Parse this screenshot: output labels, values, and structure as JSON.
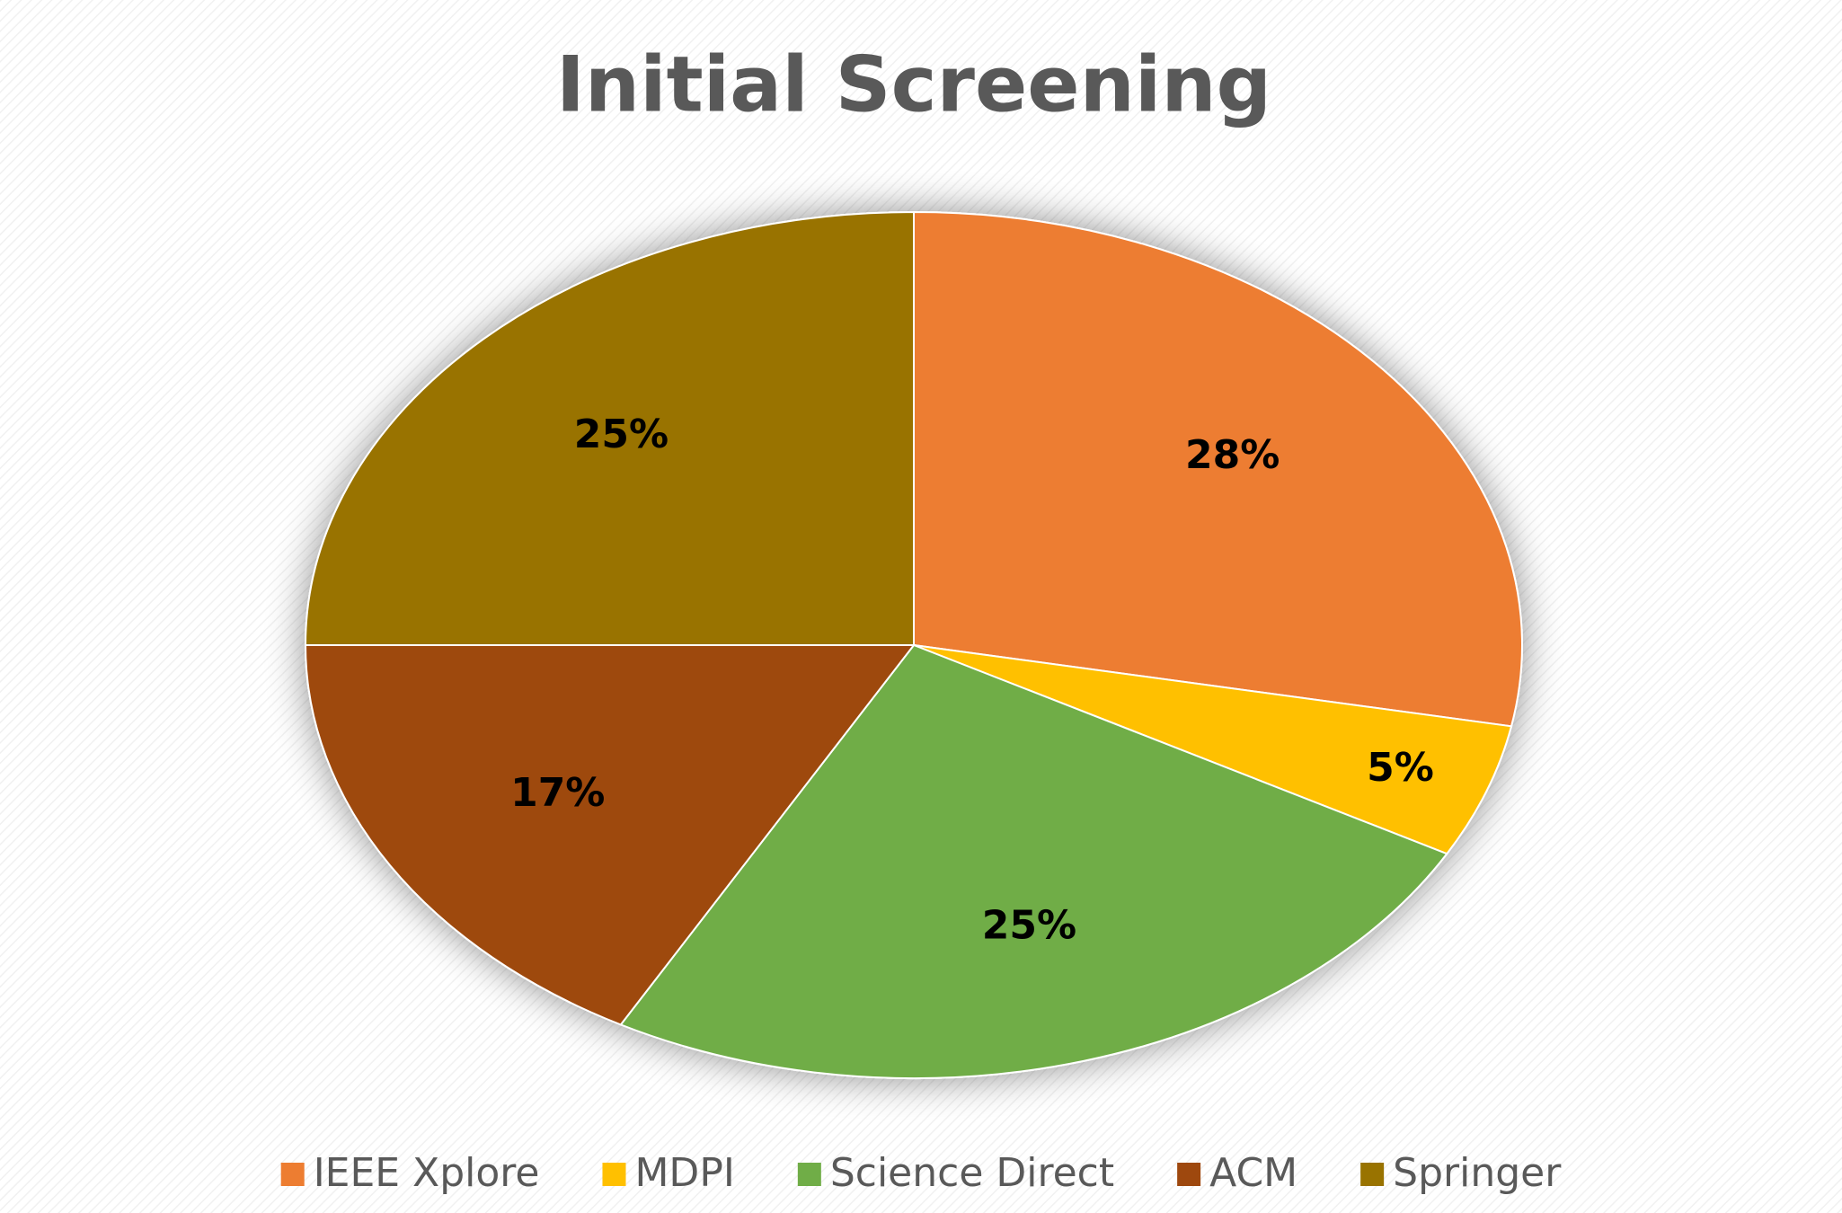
{
  "chart_data": {
    "type": "pie",
    "title": "Initial Screening",
    "categories": [
      "IEEE Xplore",
      "MDPI",
      "Science Direct",
      "ACM",
      "Springer"
    ],
    "values": [
      28,
      5,
      25,
      17,
      25
    ],
    "value_labels": [
      "28%",
      "5%",
      "25%",
      "17%",
      "25%"
    ],
    "colors": [
      "#ed7d31",
      "#ffc000",
      "#70ad47",
      "#9e480e",
      "#997300"
    ],
    "legend": "bottom"
  }
}
